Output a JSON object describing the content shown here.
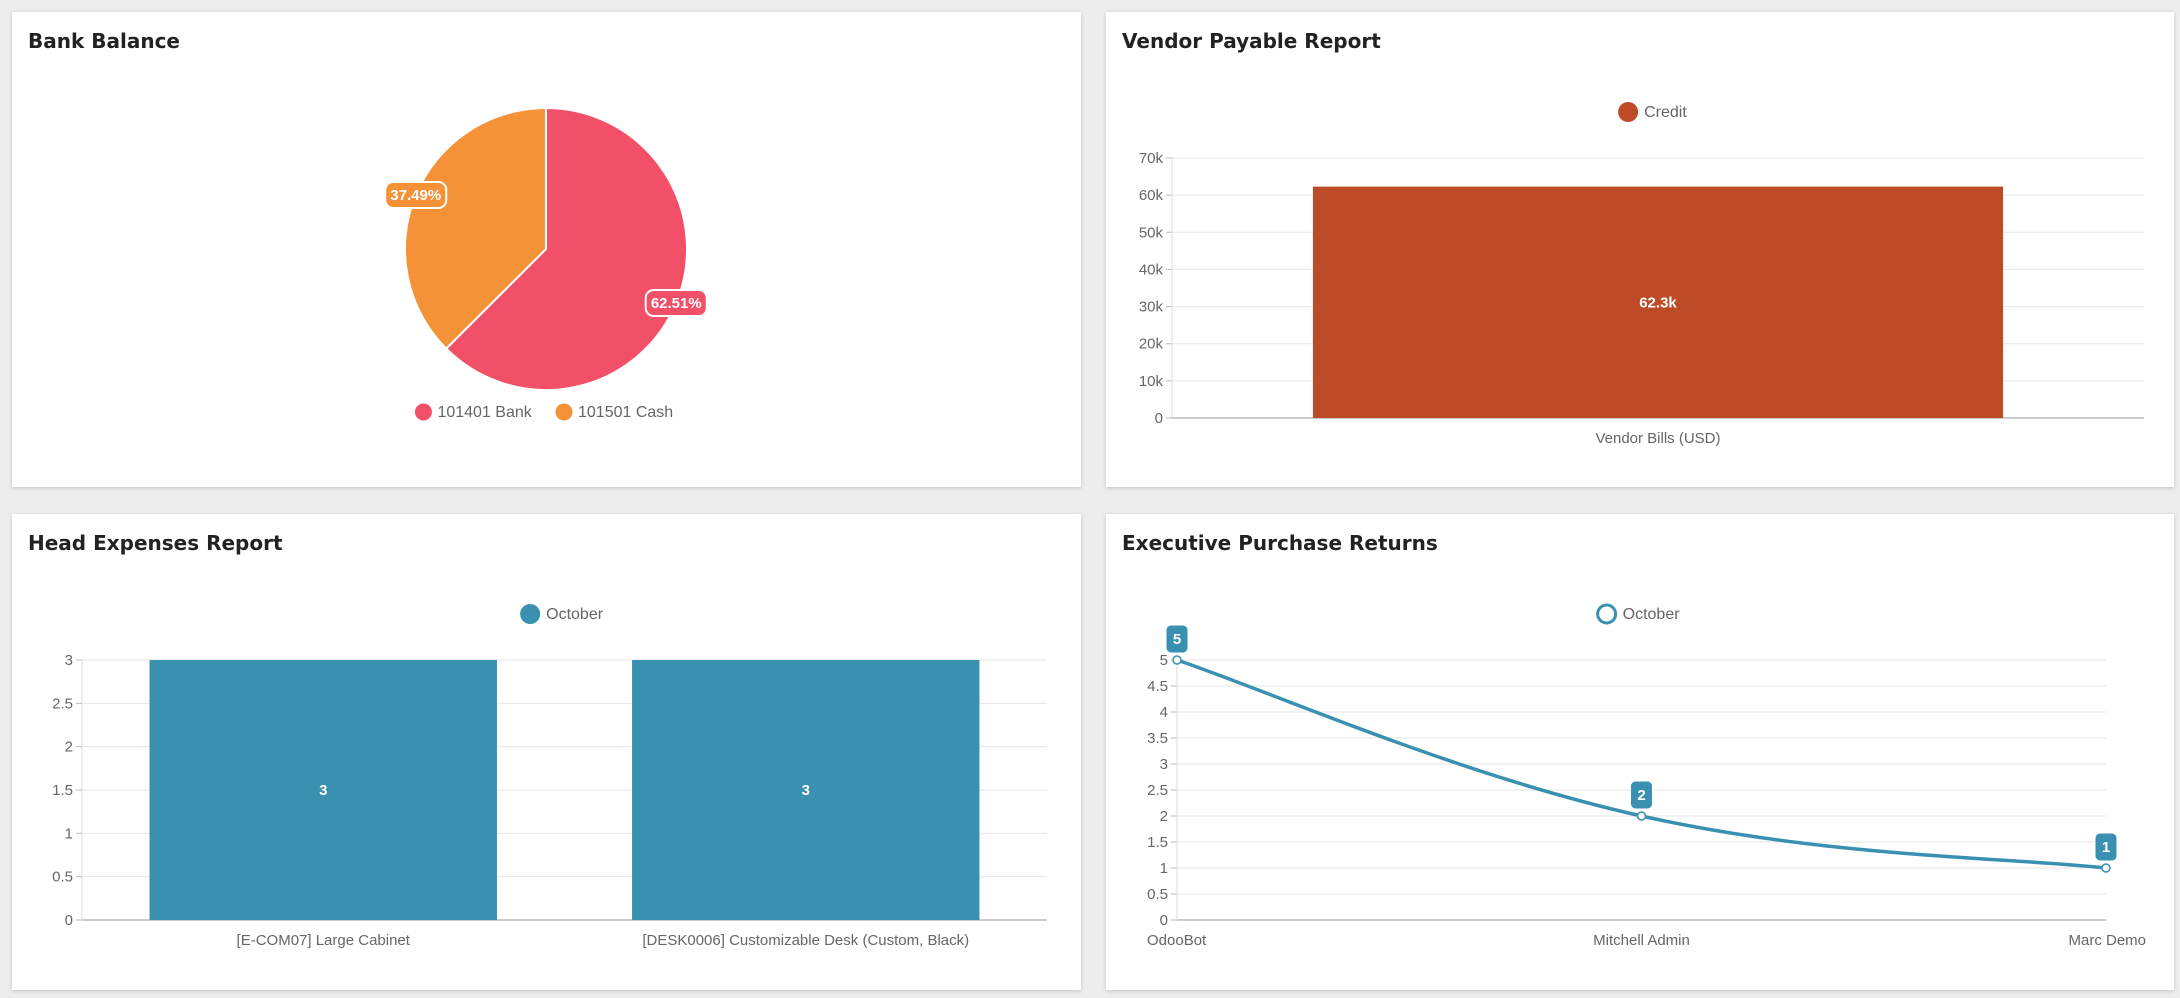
{
  "cards": {
    "bank_balance": {
      "title": "Bank Balance"
    },
    "vendor_payable": {
      "title": "Vendor Payable Report"
    },
    "head_expenses": {
      "title": "Head Expenses Report"
    },
    "purchase_returns": {
      "title": "Executive Purchase Returns"
    }
  },
  "chart_data": [
    {
      "id": "bank_balance",
      "type": "pie",
      "title": "Bank Balance",
      "labels": [
        "101401 Bank",
        "101501 Cash"
      ],
      "values": [
        62.51,
        37.49
      ],
      "value_labels": [
        "62.51%",
        "37.49%"
      ],
      "colors": [
        "#f25068",
        "#f59238"
      ],
      "legend": "bottom"
    },
    {
      "id": "vendor_payable",
      "type": "bar",
      "title": "Vendor Payable Report",
      "categories": [
        "Vendor Bills (USD)"
      ],
      "series": [
        {
          "name": "Credit",
          "values": [
            62300
          ],
          "color": "#bd4b28"
        }
      ],
      "value_labels": [
        "62.3k"
      ],
      "ylim": [
        0,
        70000
      ],
      "yticks": [
        0,
        10000,
        20000,
        30000,
        40000,
        50000,
        60000,
        70000
      ],
      "ytick_labels": [
        "0",
        "10k",
        "20k",
        "30k",
        "40k",
        "50k",
        "60k",
        "70k"
      ],
      "grid": true,
      "legend": "top"
    },
    {
      "id": "head_expenses",
      "type": "bar",
      "title": "Head Expenses Report",
      "categories": [
        "[E-COM07] Large Cabinet",
        "[DESK0006] Customizable Desk (Custom, Black)"
      ],
      "series": [
        {
          "name": "October",
          "values": [
            3,
            3
          ],
          "color": "#3a90b0"
        }
      ],
      "value_labels": [
        "3",
        "3"
      ],
      "ylim": [
        0,
        3
      ],
      "yticks": [
        0,
        0.5,
        1,
        1.5,
        2,
        2.5,
        3
      ],
      "ytick_labels": [
        "0",
        "0.5",
        "1",
        "1.5",
        "2",
        "2.5",
        "3"
      ],
      "grid": true,
      "legend": "top"
    },
    {
      "id": "purchase_returns",
      "type": "line",
      "title": "Executive Purchase Returns",
      "categories": [
        "OdooBot",
        "Mitchell Admin",
        "Marc Demo"
      ],
      "series": [
        {
          "name": "October",
          "values": [
            5,
            2,
            1
          ],
          "color": "#3a90b0"
        }
      ],
      "value_labels": [
        "5",
        "2",
        "1"
      ],
      "ylim": [
        0,
        5
      ],
      "yticks": [
        0,
        0.5,
        1,
        1.5,
        2,
        2.5,
        3,
        3.5,
        4,
        4.5,
        5
      ],
      "ytick_labels": [
        "0",
        "0.5",
        "1",
        "1.5",
        "2",
        "2.5",
        "3",
        "3.5",
        "4",
        "4.5",
        "5"
      ],
      "grid": true,
      "legend": "top"
    }
  ]
}
